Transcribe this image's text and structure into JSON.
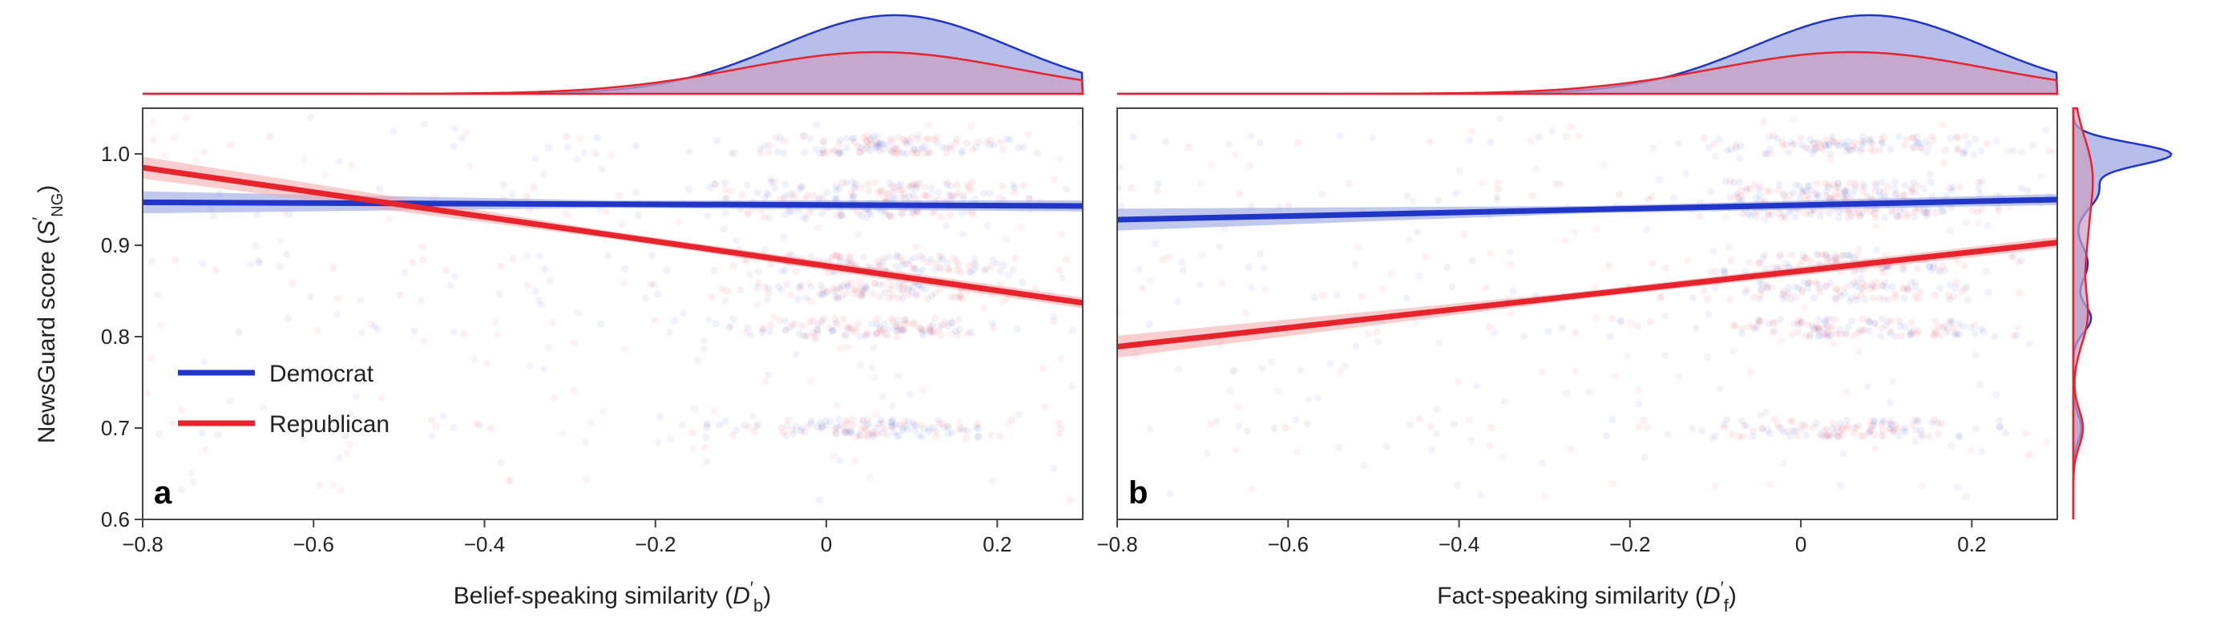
{
  "colors": {
    "democrat": "#1f36c8",
    "republican": "#e8232b",
    "democrat_band": "#8e9ae0",
    "republican_band": "#f3a6a8",
    "democrat_fill": "#aab3e6",
    "republican_fill": "#c9a0c0"
  },
  "legend": {
    "democrat": "Democrat",
    "republican": "Republican",
    "placement": "left"
  },
  "y_axis": {
    "label": "NewsGuard score (S′NG)",
    "label_main": "NewsGuard score (",
    "label_symbol": "S",
    "label_sup": "′",
    "label_sub": "NG",
    "label_end": ")",
    "ticks": [
      "0.6",
      "0.7",
      "0.8",
      "0.9",
      "1.0"
    ]
  },
  "panels": [
    {
      "letter": "a",
      "x_label_main": "Belief-speaking similarity (",
      "x_label_symbol": "D",
      "x_label_sup": "′",
      "x_label_sub": "b",
      "x_label_end": ")",
      "x_ticks": [
        "−0.8",
        "−0.6",
        "−0.4",
        "−0.2",
        "0",
        "0.2"
      ]
    },
    {
      "letter": "b",
      "x_label_main": "Fact-speaking similarity (",
      "x_label_symbol": "D",
      "x_label_sup": "′",
      "x_label_sub": "f",
      "x_label_end": ")",
      "x_ticks": [
        "−0.8",
        "−0.6",
        "−0.4",
        "−0.2",
        "0",
        "0.2"
      ]
    }
  ],
  "chart_data": [
    {
      "type": "scatter",
      "panel": "a",
      "xlabel": "Belief-speaking similarity (D′b)",
      "ylabel": "NewsGuard score (S′NG)",
      "xlim": [
        -0.8,
        0.3
      ],
      "ylim": [
        0.6,
        1.05
      ],
      "x_ticks": [
        -0.8,
        -0.6,
        -0.4,
        -0.2,
        0,
        0.2
      ],
      "y_ticks": [
        0.6,
        0.7,
        0.8,
        0.9,
        1.0
      ],
      "series": [
        {
          "name": "Democrat",
          "fit_line": {
            "x": [
              -0.8,
              0.3
            ],
            "y": [
              0.947,
              0.943
            ]
          }
        },
        {
          "name": "Republican",
          "fit_line": {
            "x": [
              -0.8,
              0.3
            ],
            "y": [
              0.985,
              0.837
            ]
          }
        }
      ],
      "scatter_bands_y": [
        1.01,
        0.96,
        0.94,
        0.88,
        0.85,
        0.81,
        0.7
      ],
      "marginal_top": {
        "type": "density",
        "democrat_peak_x": 0.08,
        "republican_peak_x": 0.06
      }
    },
    {
      "type": "scatter",
      "panel": "b",
      "xlabel": "Fact-speaking similarity (D′f)",
      "ylabel": "NewsGuard score (S′NG)",
      "xlim": [
        -0.8,
        0.3
      ],
      "ylim": [
        0.6,
        1.05
      ],
      "x_ticks": [
        -0.8,
        -0.6,
        -0.4,
        -0.2,
        0,
        0.2
      ],
      "y_ticks": [
        0.6,
        0.7,
        0.8,
        0.9,
        1.0
      ],
      "series": [
        {
          "name": "Democrat",
          "fit_line": {
            "x": [
              -0.8,
              0.3
            ],
            "y": [
              0.928,
              0.95
            ]
          }
        },
        {
          "name": "Republican",
          "fit_line": {
            "x": [
              -0.8,
              0.3
            ],
            "y": [
              0.789,
              0.903
            ]
          }
        }
      ],
      "scatter_bands_y": [
        1.01,
        0.96,
        0.94,
        0.88,
        0.85,
        0.81,
        0.7
      ],
      "marginal_top": {
        "type": "density",
        "democrat_peak_x": 0.08,
        "republican_peak_x": 0.06
      },
      "marginal_right": {
        "type": "density",
        "democrat_peak_y": 1.0,
        "republican_peak_y": 0.97
      }
    }
  ]
}
